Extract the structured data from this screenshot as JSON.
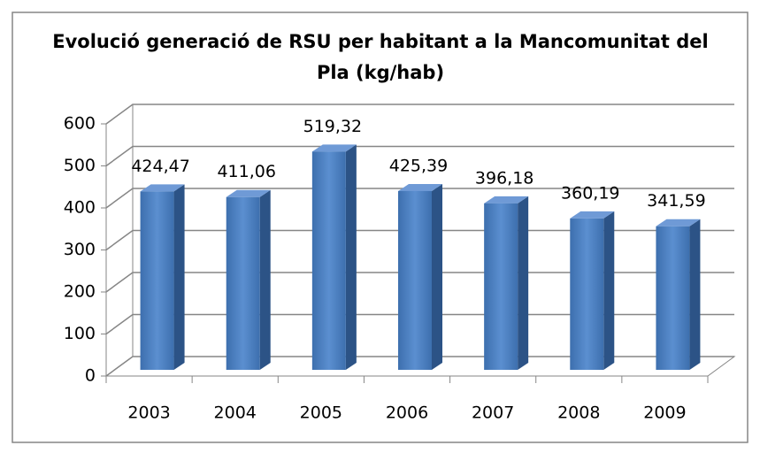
{
  "chart_data": {
    "type": "bar",
    "title": "Evolució generació de RSU per habitant a la Mancomunitat del Pla (kg/hab)",
    "categories": [
      "2003",
      "2004",
      "2005",
      "2006",
      "2007",
      "2008",
      "2009"
    ],
    "values": [
      424.47,
      411.06,
      519.32,
      425.39,
      396.18,
      360.19,
      341.59
    ],
    "value_labels": [
      "424,47",
      "411,06",
      "519,32",
      "425,39",
      "396,18",
      "360,19",
      "341,59"
    ],
    "color": "#4f81bd",
    "ylim": [
      0,
      600
    ],
    "yticks": [
      0,
      100,
      200,
      300,
      400,
      500,
      600
    ],
    "grid": true
  }
}
